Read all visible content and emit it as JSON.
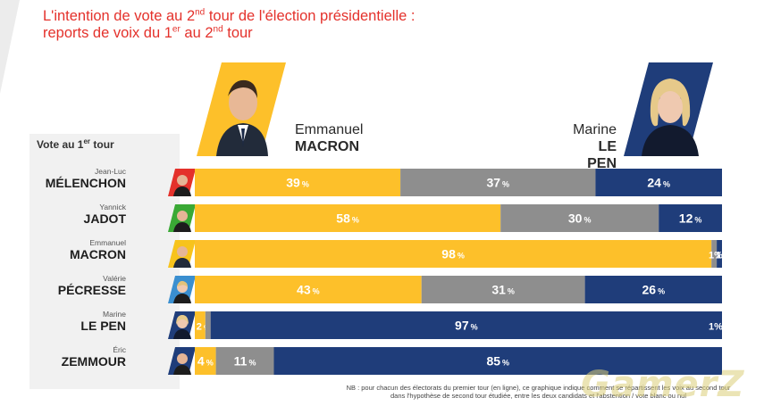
{
  "header": {
    "title_line1_pre": "L'intention de vote au 2",
    "title_line1_sup": "nd",
    "title_line1_post": " tour de l'élection présidentielle :",
    "title_line2_pre": "reports de voix du 1",
    "title_line2_sup": "er",
    "title_line2_mid": " au 2",
    "title_line2_sup2": "nd",
    "title_line2_post": " tour"
  },
  "candidates": {
    "macron": {
      "first": "Emmanuel",
      "last": "MACRON"
    },
    "lepen": {
      "first": "Marine",
      "last": "LE PEN"
    }
  },
  "panel": {
    "title_pre": "Vote au 1",
    "title_sup": "er",
    "title_post": " tour"
  },
  "rows": [
    {
      "first": "Jean-Luc",
      "last": "MÉLENCHON",
      "thumb_color": "#e4312b"
    },
    {
      "first": "Yannick",
      "last": "JADOT",
      "thumb_color": "#3aa935"
    },
    {
      "first": "Emmanuel",
      "last": "MACRON",
      "thumb_color": "#f7c31c"
    },
    {
      "first": "Valérie",
      "last": "PÉCRESSE",
      "thumb_color": "#3a8fd0"
    },
    {
      "first": "Marine",
      "last": "LE PEN",
      "thumb_color": "#1f3d7a"
    },
    {
      "first": "Éric",
      "last": "ZEMMOUR",
      "thumb_color": "#1f3d7a"
    }
  ],
  "chart_data": {
    "type": "bar",
    "orientation": "horizontal",
    "stacked": true,
    "normalized": true,
    "categories": [
      "MÉLENCHON",
      "JADOT",
      "MACRON",
      "PÉCRESSE",
      "LE PEN",
      "ZEMMOUR"
    ],
    "series": [
      {
        "values": [
          39,
          58,
          98,
          43,
          2,
          4
        ],
        "color": "#fdc02a",
        "labels": [
          "39",
          "58",
          "98",
          "43",
          "2",
          "4"
        ]
      },
      {
        "values": [
          37,
          30,
          1,
          31,
          1,
          11
        ],
        "color": "#8e8e8e",
        "labels": [
          "37",
          "30",
          "",
          "31",
          "",
          "11"
        ]
      },
      {
        "values": [
          24,
          12,
          1,
          26,
          97,
          85
        ],
        "color": "#1f3d7a",
        "labels": [
          "24",
          "12",
          "1",
          "26",
          "97",
          "85"
        ]
      }
    ],
    "combined_labels": [
      "",
      "",
      "1",
      "",
      "1",
      ""
    ],
    "unit": "%",
    "grid": false,
    "legend": "none"
  },
  "note": {
    "line1": "NB : pour chacun des électorats du premier tour (en ligne), ce graphique indique comment se répartissent les voix au second tour",
    "line2": "dans l'hypothèse de second tour étudiée, entre les deux candidats et l'abstention / vote blanc ou nul"
  },
  "watermark": "GamerZ"
}
